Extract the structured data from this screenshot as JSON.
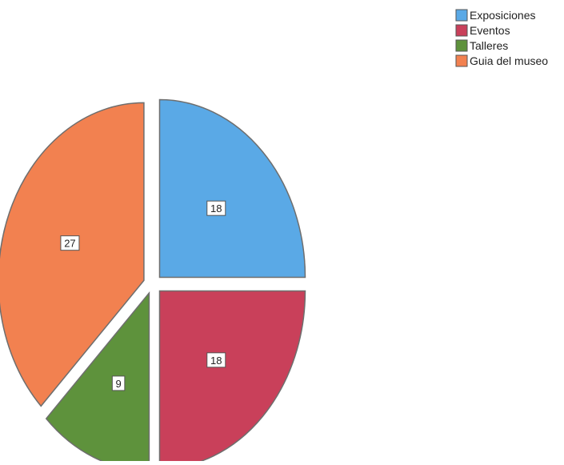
{
  "chart_data": {
    "type": "pie",
    "title": "",
    "categories": [
      "Exposiciones",
      "Eventos",
      "Talleres",
      "Guia del museo"
    ],
    "values": [
      18,
      18,
      9,
      27
    ],
    "colors": [
      "#5aa9e6",
      "#c9405a",
      "#5e923c",
      "#f28150"
    ],
    "data_labels": [
      "18",
      "18",
      "9",
      "27"
    ],
    "legend": {
      "position": "top-right",
      "entries": [
        "Exposiciones",
        "Eventos",
        "Talleres",
        "Guia del museo"
      ]
    },
    "exploded": true
  }
}
